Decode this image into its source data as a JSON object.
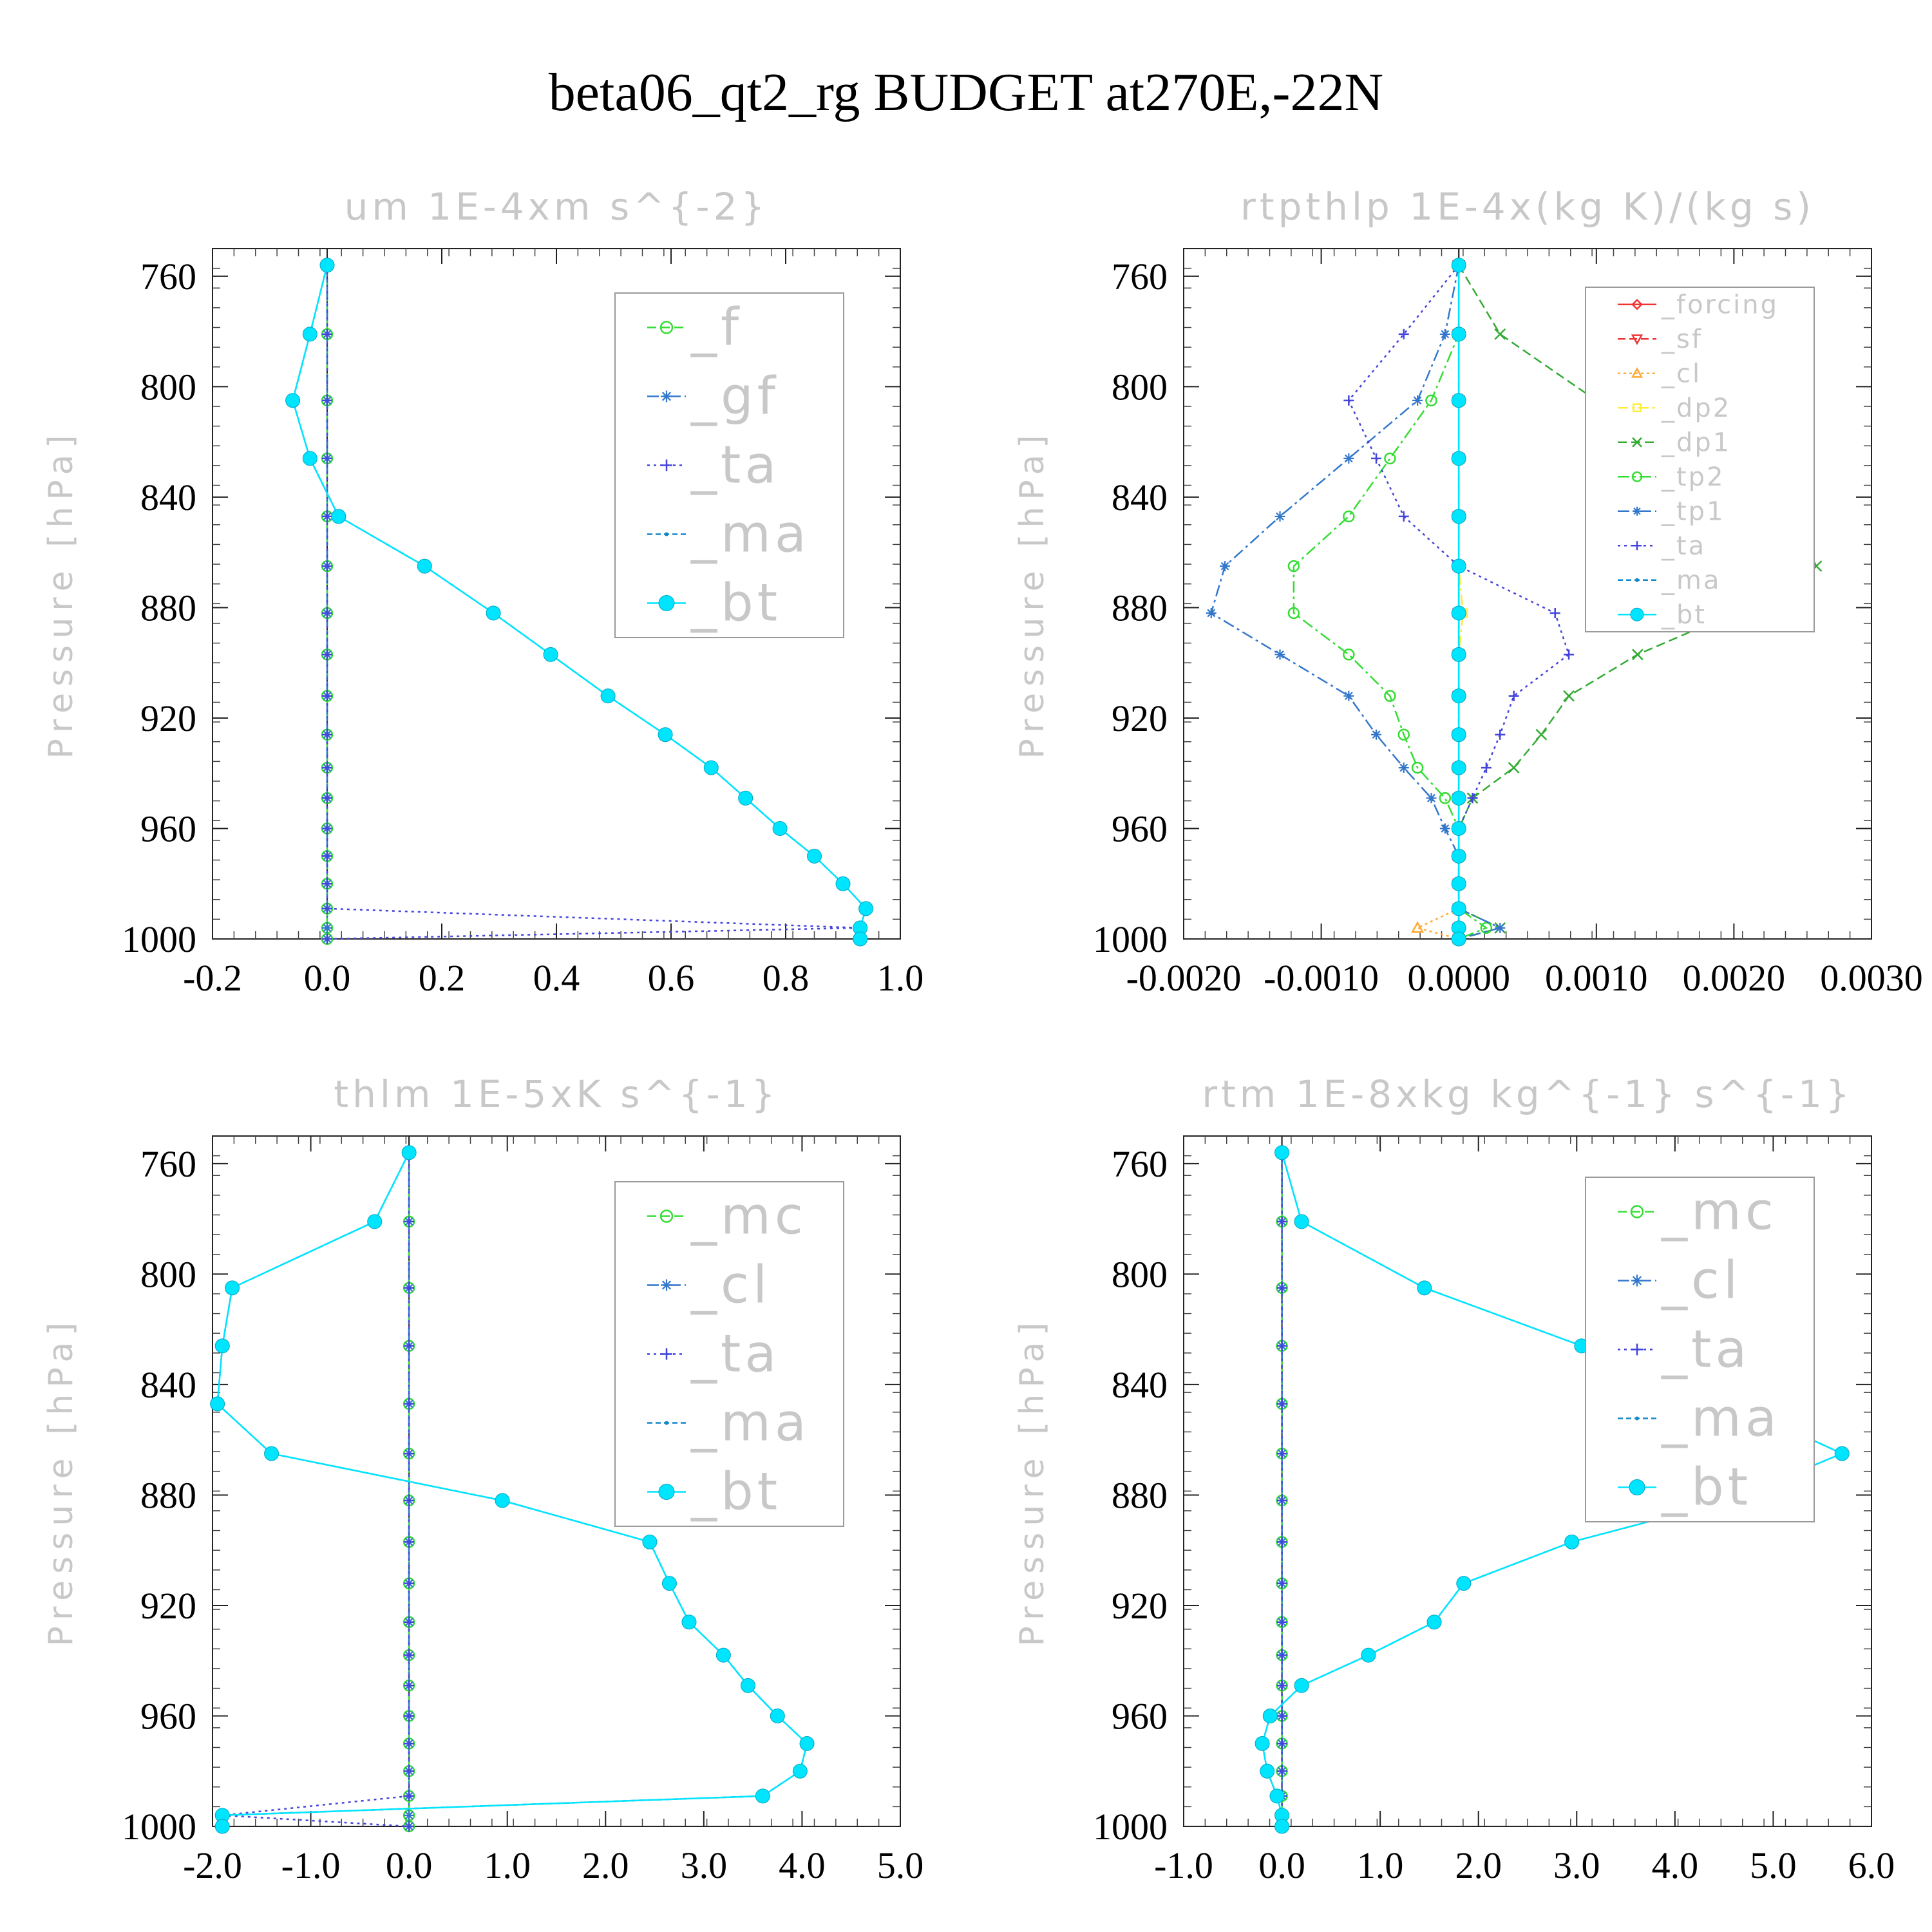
{
  "title": "beta06_qt2_rg  BUDGET at270E,-22N",
  "chart_data": [
    {
      "type": "line",
      "title": "um   1E-4xm s^{-2}",
      "ylabel": "Pressure [hPa]",
      "xlim": [
        -0.2,
        1.0
      ],
      "ylim": [
        1000,
        750
      ],
      "xticks": [
        "-0.2",
        "0.0",
        "0.2",
        "0.4",
        "0.6",
        "0.8",
        "1.0"
      ],
      "yticks": [
        "760",
        "800",
        "840",
        "880",
        "920",
        "960",
        "1000"
      ],
      "legend_size": "large",
      "pressure": [
        756,
        781,
        805,
        826,
        847,
        865,
        882,
        897,
        912,
        926,
        938,
        949,
        960,
        970,
        980,
        989,
        996,
        1000
      ],
      "series": [
        {
          "name": "_f",
          "color": "#33dd33",
          "marker": "circle",
          "dash": "14,7",
          "values": [
            0,
            0,
            0,
            0,
            0,
            0,
            0,
            0,
            0,
            0,
            0,
            0,
            0,
            0,
            0,
            0,
            0,
            0
          ]
        },
        {
          "name": "_gf",
          "color": "#3377cc",
          "marker": "asterisk",
          "dash": "18,6,4,6",
          "values": [
            0,
            0,
            0,
            0,
            0,
            0,
            0,
            0,
            0,
            0,
            0,
            0,
            0,
            0,
            0,
            0,
            0,
            0
          ]
        },
        {
          "name": "_ta",
          "color": "#4444dd",
          "marker": "plus",
          "dash": "4,6",
          "values": [
            0,
            0,
            0,
            0,
            0,
            0,
            0,
            0,
            0,
            0,
            0,
            0,
            0,
            0,
            0,
            0,
            0.93,
            0
          ]
        },
        {
          "name": "_ma",
          "color": "#1188cc",
          "marker": "dot",
          "dash": "8,5",
          "values": [
            0,
            -0.03,
            -0.06,
            -0.03,
            0.02,
            0.17,
            0.29,
            0.39,
            0.49,
            0.59,
            0.67,
            0.73,
            0.79,
            0.85,
            0.9,
            0.94,
            0.93,
            0.93
          ]
        },
        {
          "name": "_bt",
          "color": "#00e5ff",
          "marker": "filled",
          "dash": "",
          "values": [
            0,
            -0.03,
            -0.06,
            -0.03,
            0.02,
            0.17,
            0.29,
            0.39,
            0.49,
            0.59,
            0.67,
            0.73,
            0.79,
            0.85,
            0.9,
            0.94,
            0.93,
            0.93
          ]
        }
      ]
    },
    {
      "type": "line",
      "title": "rtpthlp   1E-4x(kg K)/(kg s)",
      "ylabel": "Pressure [hPa]",
      "xlim": [
        -0.002,
        0.003
      ],
      "ylim": [
        1000,
        750
      ],
      "xticks": [
        "-0.0020",
        "-0.0010",
        "0.0000",
        "0.0010",
        "0.0020",
        "0.0030"
      ],
      "yticks": [
        "760",
        "800",
        "840",
        "880",
        "920",
        "960",
        "1000"
      ],
      "legend_size": "small",
      "pressure": [
        756,
        781,
        805,
        826,
        847,
        865,
        882,
        897,
        912,
        926,
        938,
        949,
        960,
        970,
        980,
        989,
        996,
        1000
      ],
      "series": [
        {
          "name": "_forcing",
          "color": "#ee3333",
          "marker": "diamond",
          "dash": "",
          "values": [
            0,
            0,
            0,
            0,
            0,
            0,
            0,
            0,
            0,
            0,
            0,
            0,
            0,
            0,
            0,
            0,
            0,
            0
          ]
        },
        {
          "name": "_sf",
          "color": "#ee3333",
          "marker": "triangle-down",
          "dash": "12,6",
          "values": [
            0,
            0,
            0,
            0,
            0,
            0,
            0,
            0,
            0,
            0,
            0,
            0,
            0,
            0,
            0,
            0,
            0,
            0
          ]
        },
        {
          "name": "_cl",
          "color": "#ffaa33",
          "marker": "triangle",
          "dash": "4,5",
          "values": [
            0,
            0,
            0,
            0,
            0,
            0,
            0,
            0,
            0,
            0,
            0,
            0,
            0,
            0,
            0,
            0,
            -0.0003,
            0
          ]
        },
        {
          "name": "_dp2",
          "color": "#ffee33",
          "marker": "square",
          "dash": "16,6,4,6",
          "values": [
            0,
            0,
            0,
            0,
            0,
            0,
            3e-05,
            0,
            0,
            0,
            0,
            0,
            0,
            0,
            0,
            0,
            0,
            0
          ]
        },
        {
          "name": "_dp1",
          "color": "#33aa33",
          "marker": "x",
          "dash": "14,7",
          "values": [
            0,
            0.0003,
            0.001,
            0.0017,
            0.0024,
            0.0026,
            0.002,
            0.0013,
            0.0008,
            0.0006,
            0.0004,
            0.0001,
            0,
            0,
            0,
            0,
            0.0003,
            0
          ]
        },
        {
          "name": "_tp2",
          "color": "#33dd33",
          "marker": "circle",
          "dash": "18,6,4,6",
          "values": [
            0,
            0,
            -0.0002,
            -0.0005,
            -0.0008,
            -0.0012,
            -0.0012,
            -0.0008,
            -0.0005,
            -0.0004,
            -0.0003,
            -0.0001,
            0,
            0,
            0,
            0,
            0.0002,
            0
          ]
        },
        {
          "name": "_tp1",
          "color": "#3377cc",
          "marker": "asterisk",
          "dash": "18,6,4,6",
          "values": [
            0,
            -0.0001,
            -0.0003,
            -0.0008,
            -0.0013,
            -0.0017,
            -0.0018,
            -0.0013,
            -0.0008,
            -0.0006,
            -0.0004,
            -0.0002,
            -0.0001,
            0,
            0,
            0,
            0.0003,
            0
          ]
        },
        {
          "name": "_ta",
          "color": "#4444dd",
          "marker": "plus",
          "dash": "4,6",
          "values": [
            0,
            -0.0004,
            -0.0008,
            -0.0006,
            -0.0004,
            0,
            0.0007,
            0.0008,
            0.0004,
            0.0003,
            0.0002,
            0.0001,
            0,
            0,
            0,
            0,
            0,
            0
          ]
        },
        {
          "name": "_ma",
          "color": "#1188cc",
          "marker": "dot",
          "dash": "8,5",
          "values": [
            0,
            0,
            0,
            0,
            0,
            0,
            0,
            0,
            0,
            0,
            0,
            0,
            0,
            0,
            0,
            0,
            0,
            0
          ]
        },
        {
          "name": "_bt",
          "color": "#00e5ff",
          "marker": "filled",
          "dash": "",
          "values": [
            0,
            0,
            0,
            0,
            0,
            0,
            0,
            0,
            0,
            0,
            0,
            0,
            0,
            0,
            0,
            0,
            0,
            0
          ]
        }
      ]
    },
    {
      "type": "line",
      "title": "thlm   1E-5xK s^{-1}",
      "ylabel": "Pressure [hPa]",
      "xlim": [
        -2.0,
        5.0
      ],
      "ylim": [
        1000,
        750
      ],
      "xticks": [
        "-2.0",
        "-1.0",
        "0.0",
        "1.0",
        "2.0",
        "3.0",
        "4.0",
        "5.0"
      ],
      "yticks": [
        "760",
        "800",
        "840",
        "880",
        "920",
        "960",
        "1000"
      ],
      "legend_size": "large",
      "pressure": [
        756,
        781,
        805,
        826,
        847,
        865,
        882,
        897,
        912,
        926,
        938,
        949,
        960,
        970,
        980,
        989,
        996,
        1000
      ],
      "series": [
        {
          "name": "_mc",
          "color": "#33dd33",
          "marker": "circle",
          "dash": "14,7",
          "values": [
            0,
            0,
            0,
            0,
            0,
            0,
            0,
            0,
            0,
            0,
            0,
            0,
            0,
            0,
            0,
            0,
            0,
            0
          ]
        },
        {
          "name": "_cl",
          "color": "#3377cc",
          "marker": "asterisk",
          "dash": "18,6,4,6",
          "values": [
            0,
            0,
            0,
            0,
            0,
            0,
            0,
            0,
            0,
            0,
            0,
            0,
            0,
            0,
            0,
            0,
            0,
            0
          ]
        },
        {
          "name": "_ta",
          "color": "#4444dd",
          "marker": "plus",
          "dash": "4,6",
          "values": [
            0,
            0,
            0,
            0,
            0,
            0,
            0,
            0,
            0,
            0,
            0,
            0,
            0,
            0,
            0,
            0,
            -1.9,
            0
          ]
        },
        {
          "name": "_ma",
          "color": "#1188cc",
          "marker": "dot",
          "dash": "8,5",
          "values": [
            0,
            -0.35,
            -1.8,
            -1.9,
            -1.95,
            -1.4,
            0.95,
            2.45,
            2.65,
            2.85,
            3.2,
            3.45,
            3.75,
            4.05,
            3.98,
            3.6,
            -1.9,
            -1.9
          ]
        },
        {
          "name": "_bt",
          "color": "#00e5ff",
          "marker": "filled",
          "dash": "",
          "values": [
            0,
            -0.35,
            -1.8,
            -1.9,
            -1.95,
            -1.4,
            0.95,
            2.45,
            2.65,
            2.85,
            3.2,
            3.45,
            3.75,
            4.05,
            3.98,
            3.6,
            -1.9,
            -1.9
          ]
        }
      ]
    },
    {
      "type": "line",
      "title": "rtm   1E-8xkg kg^{-1} s^{-1}",
      "ylabel": "Pressure [hPa]",
      "xlim": [
        -1.0,
        6.0
      ],
      "ylim": [
        1000,
        750
      ],
      "xticks": [
        "-1.0",
        "0.0",
        "1.0",
        "2.0",
        "3.0",
        "4.0",
        "5.0",
        "6.0"
      ],
      "yticks": [
        "760",
        "800",
        "840",
        "880",
        "920",
        "960",
        "1000"
      ],
      "legend_size": "large",
      "pressure": [
        756,
        781,
        805,
        826,
        847,
        865,
        882,
        897,
        912,
        926,
        938,
        949,
        960,
        970,
        980,
        989,
        996,
        1000
      ],
      "series": [
        {
          "name": "_mc",
          "color": "#33dd33",
          "marker": "circle",
          "dash": "14,7",
          "values": [
            0,
            0,
            0,
            0,
            0,
            0,
            0,
            0,
            0,
            0,
            0,
            0,
            0,
            0,
            0,
            0,
            0,
            0
          ]
        },
        {
          "name": "_cl",
          "color": "#3377cc",
          "marker": "asterisk",
          "dash": "18,6,4,6",
          "values": [
            0,
            0,
            0,
            0,
            0,
            0,
            0,
            0,
            0,
            0,
            0,
            0,
            0,
            0,
            0,
            0,
            0,
            0
          ]
        },
        {
          "name": "_ta",
          "color": "#4444dd",
          "marker": "plus",
          "dash": "4,6",
          "values": [
            0,
            0,
            0,
            0,
            0,
            0,
            0,
            0,
            0,
            0,
            0,
            0,
            0,
            0,
            0,
            0,
            0,
            0
          ]
        },
        {
          "name": "_ma",
          "color": "#1188cc",
          "marker": "dot",
          "dash": "8,5",
          "values": [
            0,
            0.2,
            1.45,
            3.05,
            4.6,
            5.7,
            4.55,
            2.95,
            1.85,
            1.55,
            0.88,
            0.2,
            -0.12,
            -0.2,
            -0.15,
            -0.05,
            0,
            0
          ]
        },
        {
          "name": "_bt",
          "color": "#00e5ff",
          "marker": "filled",
          "dash": "",
          "values": [
            0,
            0.2,
            1.45,
            3.05,
            4.6,
            5.7,
            4.55,
            2.95,
            1.85,
            1.55,
            0.88,
            0.2,
            -0.12,
            -0.2,
            -0.15,
            -0.05,
            0,
            0
          ]
        }
      ]
    }
  ]
}
